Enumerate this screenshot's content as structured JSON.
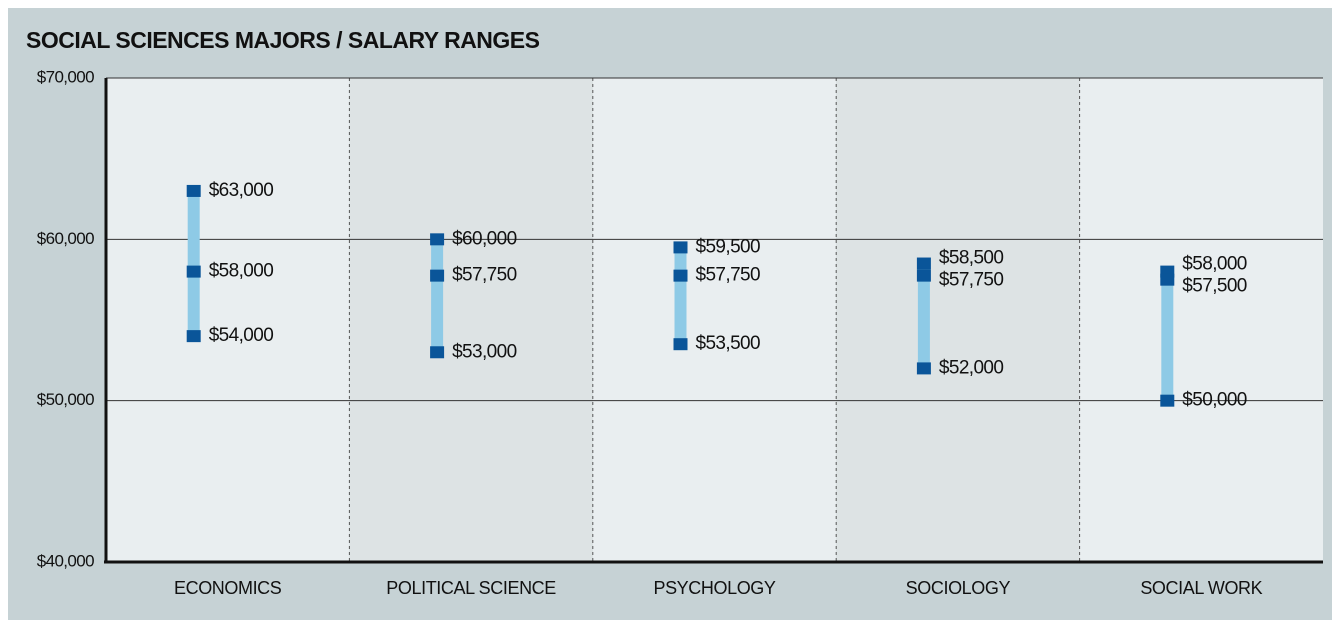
{
  "chart_data": {
    "type": "range",
    "title": "SOCIAL SCIENCES MAJORS / SALARY RANGES",
    "categories": [
      "ECONOMICS",
      "POLITICAL SCIENCE",
      "PSYCHOLOGY",
      "SOCIOLOGY",
      "SOCIAL WORK"
    ],
    "range_color": "#8ecae6",
    "marker_color": "#0a5599",
    "series": [
      {
        "values": [
          63000,
          60000,
          59500,
          58500,
          58000
        ],
        "value_labels": [
          "$63,000",
          "$60,000",
          "$59,500",
          "$58,500",
          "$58,000"
        ]
      },
      {
        "values": [
          58000,
          57750,
          57750,
          57750,
          57500
        ],
        "value_labels": [
          "$58,000",
          "$57,750",
          "$57,750",
          "$57,750",
          "$57,500"
        ]
      },
      {
        "values": [
          54000,
          53000,
          53500,
          52000,
          50000
        ],
        "value_labels": [
          "$54,000",
          "$53,000",
          "$53,500",
          "$52,000",
          "$50,000"
        ]
      }
    ],
    "ylim": [
      40000,
      70000
    ],
    "yticks": [
      {
        "value": 40000,
        "label": "$40,000"
      },
      {
        "value": 50000,
        "label": "$50,000"
      },
      {
        "value": 60000,
        "label": "$60,000"
      },
      {
        "value": 70000,
        "label": "$70,000"
      }
    ],
    "grid": true
  }
}
